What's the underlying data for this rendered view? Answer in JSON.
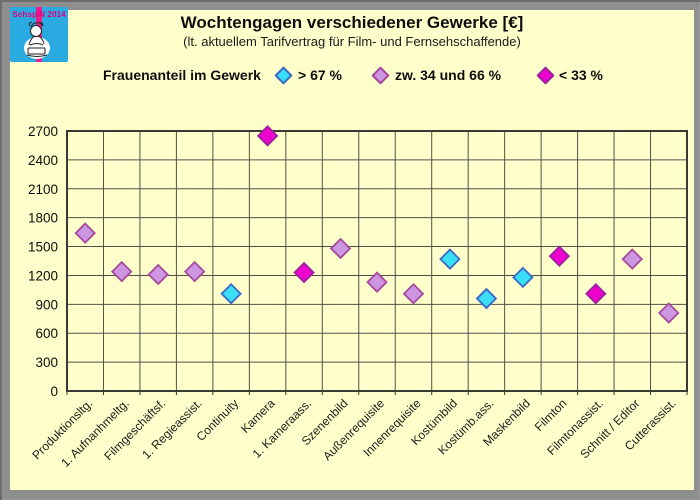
{
  "page": {
    "background_color": "#FFFFCB",
    "frame_color": "#8E8E8E"
  },
  "logo": {
    "text": "SchspIN 2014",
    "bg_color": "#29ABE2",
    "stripe_color": "#EC1E8C",
    "text_color": "#E6007E"
  },
  "header": {
    "title": "Wochtengagen verschiedener Gewerke [€]",
    "subtitle": "(lt. aktuellem Tarifvertrag für Film- und Fernsehschaffende)"
  },
  "legend": {
    "label": "Frauenanteil im Gewerk",
    "entries": [
      {
        "key": "gt67",
        "label": "> 67 %",
        "fill": "#38DFF6",
        "stroke": "#3E68C8"
      },
      {
        "key": "mid",
        "label": "zw. 34 und 66 %",
        "fill": "#CC96E2",
        "stroke": "#A8489B"
      },
      {
        "key": "lt33",
        "label": "< 33 %",
        "fill": "#EE00CF",
        "stroke": "#9B239D"
      }
    ]
  },
  "chart_data": {
    "type": "scatter",
    "title": "Wochtengagen verschiedener Gewerke [€]",
    "subtitle": "(lt. aktuellem Tarifvertrag für Film- und Fernsehschaffende)",
    "ylabel": "",
    "xlabel": "",
    "ylim": [
      0,
      2700
    ],
    "y_ticks": [
      0,
      300,
      600,
      900,
      1200,
      1500,
      1800,
      2100,
      2400,
      2700
    ],
    "grid": true,
    "legend_note": "Frauenanteil im Gewerk: gt67 = > 67 %, mid = zw. 34 und 66 %, lt33 = < 33 %",
    "categories": [
      "Produktionsltg.",
      "1. Aufnanhmeltg.",
      "Filmgeschäftsf.",
      "1. Regieassist.",
      "Continuity",
      "Kamera",
      "1. Kameraass.",
      "Szenenbild",
      "Außenrequisite",
      "Innenrequisite",
      "Kostümbild",
      "Kostümb.ass.",
      "Maskenbild",
      "Filmton",
      "Filmtonassist.",
      "Schnitt / Editor",
      "Cutterassist."
    ],
    "points": [
      {
        "category": "Produktionsltg.",
        "value": 1640,
        "group": "mid"
      },
      {
        "category": "1. Aufnanhmeltg.",
        "value": 1240,
        "group": "mid"
      },
      {
        "category": "Filmgeschäftsf.",
        "value": 1210,
        "group": "mid"
      },
      {
        "category": "1. Regieassist.",
        "value": 1240,
        "group": "mid"
      },
      {
        "category": "Continuity",
        "value": 1010,
        "group": "gt67"
      },
      {
        "category": "Kamera",
        "value": 2650,
        "group": "lt33"
      },
      {
        "category": "1. Kameraass.",
        "value": 1230,
        "group": "lt33"
      },
      {
        "category": "Szenenbild",
        "value": 1480,
        "group": "mid"
      },
      {
        "category": "Außenrequisite",
        "value": 1130,
        "group": "mid"
      },
      {
        "category": "Innenrequisite",
        "value": 1010,
        "group": "mid"
      },
      {
        "category": "Kostümbild",
        "value": 1370,
        "group": "gt67"
      },
      {
        "category": "Kostümb.ass.",
        "value": 960,
        "group": "gt67"
      },
      {
        "category": "Maskenbild",
        "value": 1180,
        "group": "gt67"
      },
      {
        "category": "Filmton",
        "value": 1400,
        "group": "lt33"
      },
      {
        "category": "Filmtonassist.",
        "value": 1010,
        "group": "lt33"
      },
      {
        "category": "Schnitt / Editor",
        "value": 1370,
        "group": "mid"
      },
      {
        "category": "Cutterassist.",
        "value": 810,
        "group": "mid"
      }
    ]
  }
}
